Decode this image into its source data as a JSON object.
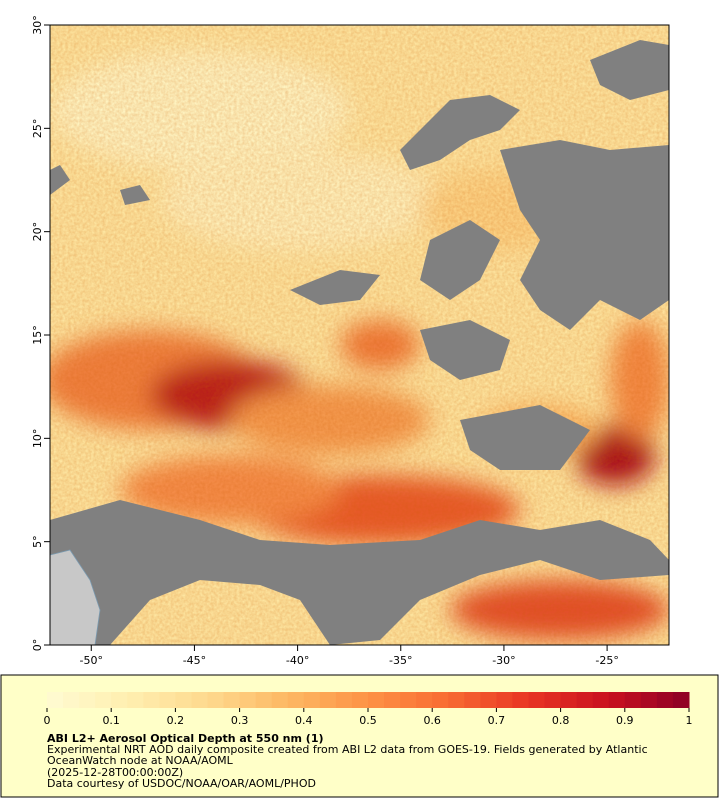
{
  "chart_data": {
    "type": "map",
    "title": "ABI L2+ Aerosol Optical Depth at 550 nm (1)",
    "subtitle": "Experimental NRT AOD daily composite created from ABI L2 data from GOES-19. Fields generated by Atlantic OceanWatch node at NOAA/AOML",
    "timestamp": "(2025-12-28T00:00:00Z)",
    "credit": "Data courtesy of USDOC/NOAA/OAR/AOML/PHOD",
    "xlim": [
      -52,
      -22
    ],
    "xticks": [
      {
        "value": -50,
        "label": "-50°"
      },
      {
        "value": -45,
        "label": "-45°"
      },
      {
        "value": -40,
        "label": "-40°"
      },
      {
        "value": -35,
        "label": "-35°"
      },
      {
        "value": -30,
        "label": "-30°"
      },
      {
        "value": -25,
        "label": "-25°"
      }
    ],
    "ylim": [
      0,
      30
    ],
    "yticks": [
      {
        "value": 0,
        "label": "0°"
      },
      {
        "value": 5,
        "label": "5°"
      },
      {
        "value": 10,
        "label": "10°"
      },
      {
        "value": 15,
        "label": "15°"
      },
      {
        "value": 20,
        "label": "20°"
      },
      {
        "value": 25,
        "label": "25°"
      },
      {
        "value": 30,
        "label": "30°"
      }
    ],
    "colorbar": {
      "lim": [
        0,
        1
      ],
      "ticks": [
        0,
        0.1,
        0.2,
        0.3,
        0.4,
        0.5,
        0.6,
        0.7,
        0.8,
        0.9,
        1
      ],
      "colors": [
        "#fffbd2",
        "#ffefb0",
        "#fed98e",
        "#fdb863",
        "#fd9245",
        "#f86b32",
        "#e83524",
        "#c9111f",
        "#8c0026"
      ]
    }
  }
}
